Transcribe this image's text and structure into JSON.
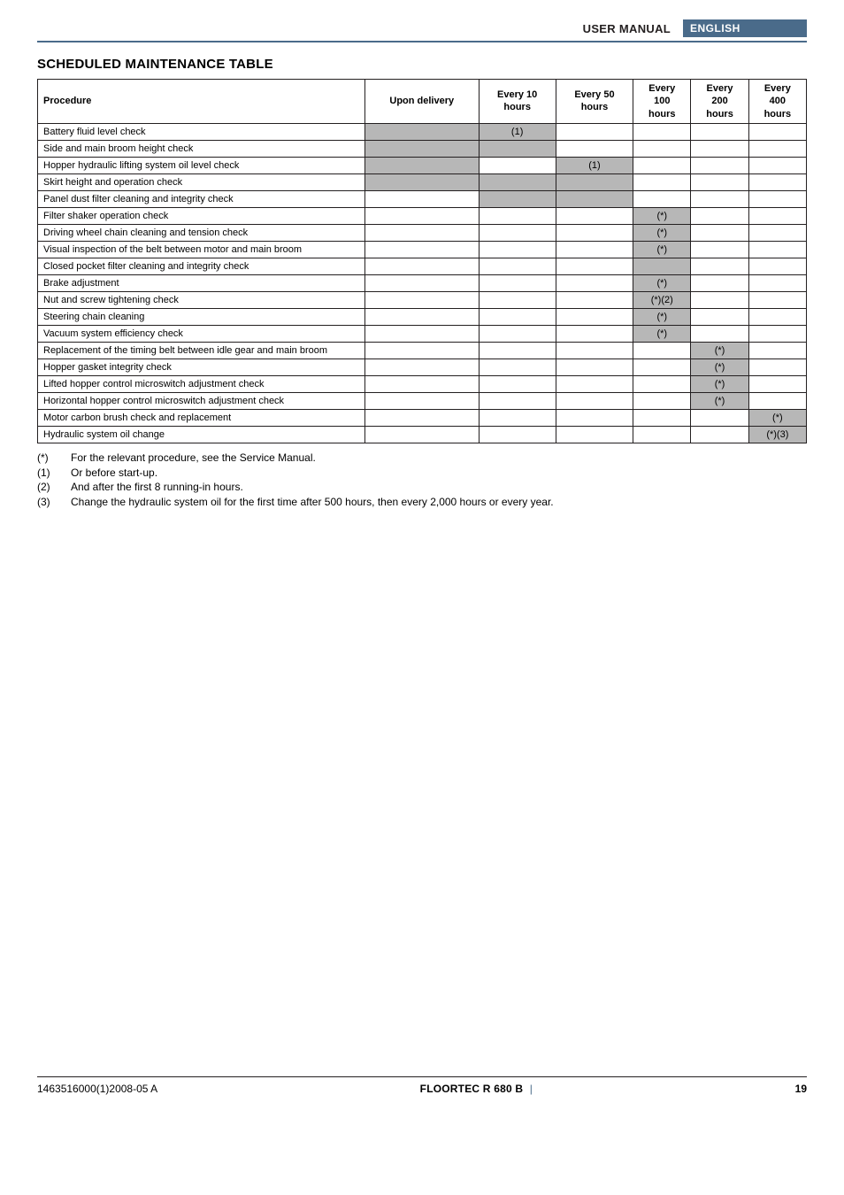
{
  "header": {
    "user_manual": "USER MANUAL",
    "language": "ENGLISH"
  },
  "section_title": "SCHEDULED MAINTENANCE TABLE",
  "table": {
    "headers": {
      "procedure": "Procedure",
      "col1": "Upon delivery",
      "col2_l1": "Every 10",
      "col2_l2": "hours",
      "col3_l1": "Every 50",
      "col3_l2": "hours",
      "col4_l1": "Every",
      "col4_l2": "100",
      "col4_l3": "hours",
      "col5_l1": "Every",
      "col5_l2": "200",
      "col5_l3": "hours",
      "col6_l1": "Every",
      "col6_l2": "400",
      "col6_l3": "hours"
    },
    "rows": [
      {
        "proc": "Battery fluid level check",
        "c1": "",
        "c2": "(1)",
        "c3": "",
        "c4": "",
        "c5": "",
        "c6": "",
        "s1": true,
        "s2": true
      },
      {
        "proc": "Side and main broom height check",
        "c1": "",
        "c2": "",
        "c3": "",
        "c4": "",
        "c5": "",
        "c6": "",
        "s1": true,
        "s2": true
      },
      {
        "proc": "Hopper hydraulic lifting system oil level check",
        "c1": "",
        "c2": "",
        "c3": "(1)",
        "c4": "",
        "c5": "",
        "c6": "",
        "s1": true,
        "s3": true
      },
      {
        "proc": "Skirt height and operation check",
        "c1": "",
        "c2": "",
        "c3": "",
        "c4": "",
        "c5": "",
        "c6": "",
        "s1": true,
        "s2": true,
        "s3": true
      },
      {
        "proc": "Panel dust filter cleaning and integrity check",
        "c1": "",
        "c2": "",
        "c3": "",
        "c4": "",
        "c5": "",
        "c6": "",
        "s2": true,
        "s3": true
      },
      {
        "proc": "Filter shaker operation check",
        "c1": "",
        "c2": "",
        "c3": "",
        "c4": "(*)",
        "c5": "",
        "c6": "",
        "s4": true
      },
      {
        "proc": "Driving wheel chain cleaning and tension check",
        "c1": "",
        "c2": "",
        "c3": "",
        "c4": "(*)",
        "c5": "",
        "c6": "",
        "s4": true
      },
      {
        "proc": "Visual inspection of the belt between motor and main broom",
        "c1": "",
        "c2": "",
        "c3": "",
        "c4": "(*)",
        "c5": "",
        "c6": "",
        "s4": true
      },
      {
        "proc": "Closed pocket filter cleaning and integrity check",
        "c1": "",
        "c2": "",
        "c3": "",
        "c4": "",
        "c5": "",
        "c6": "",
        "s4": true
      },
      {
        "proc": "Brake adjustment",
        "c1": "",
        "c2": "",
        "c3": "",
        "c4": "(*)",
        "c5": "",
        "c6": "",
        "s4": true
      },
      {
        "proc": "Nut and screw tightening check",
        "c1": "",
        "c2": "",
        "c3": "",
        "c4": "(*)(2)",
        "c5": "",
        "c6": "",
        "s4": true
      },
      {
        "proc": "Steering chain cleaning",
        "c1": "",
        "c2": "",
        "c3": "",
        "c4": "(*)",
        "c5": "",
        "c6": "",
        "s4": true
      },
      {
        "proc": "Vacuum system efficiency check",
        "c1": "",
        "c2": "",
        "c3": "",
        "c4": "(*)",
        "c5": "",
        "c6": "",
        "s4": true
      },
      {
        "proc": "Replacement of the timing belt between idle gear and main broom",
        "c1": "",
        "c2": "",
        "c3": "",
        "c4": "",
        "c5": "(*)",
        "c6": "",
        "s5": true
      },
      {
        "proc": "Hopper gasket integrity check",
        "c1": "",
        "c2": "",
        "c3": "",
        "c4": "",
        "c5": "(*)",
        "c6": "",
        "s5": true
      },
      {
        "proc": "Lifted hopper control microswitch adjustment check",
        "c1": "",
        "c2": "",
        "c3": "",
        "c4": "",
        "c5": "(*)",
        "c6": "",
        "s5": true
      },
      {
        "proc": "Horizontal hopper control microswitch adjustment check",
        "c1": "",
        "c2": "",
        "c3": "",
        "c4": "",
        "c5": "(*)",
        "c6": "",
        "s5": true
      },
      {
        "proc": "Motor carbon brush check and replacement",
        "c1": "",
        "c2": "",
        "c3": "",
        "c4": "",
        "c5": "",
        "c6": "(*)",
        "s6": true
      },
      {
        "proc": "Hydraulic system oil change",
        "c1": "",
        "c2": "",
        "c3": "",
        "c4": "",
        "c5": "",
        "c6": "(*)(3)",
        "s6": true
      }
    ]
  },
  "notes": [
    {
      "label": "(*)",
      "text": "For the relevant procedure, see the Service Manual."
    },
    {
      "label": "(1)",
      "text": "Or before start-up."
    },
    {
      "label": "(2)",
      "text": "And after the first 8 running-in hours."
    },
    {
      "label": "(3)",
      "text": "Change the hydraulic system oil for the first time after 500 hours, then every 2,000 hours or every year."
    }
  ],
  "footer": {
    "left": "1463516000(1)2008-05 A",
    "center": "FLOORTEC R 680 B",
    "page": "19"
  }
}
